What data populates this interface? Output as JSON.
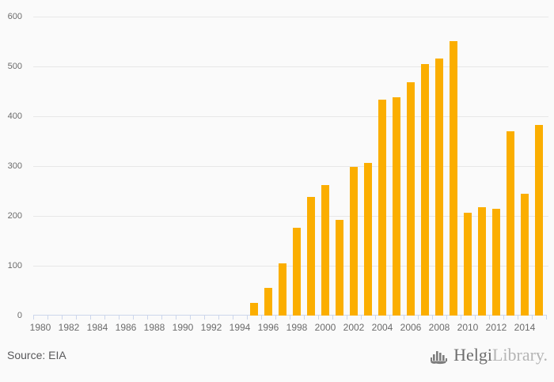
{
  "colors": {
    "background": "#fafafa",
    "bar": "#FBAE00",
    "grid": "#e7e7e7",
    "axis": "#ccd6eb",
    "tick_label": "#6b6b6b",
    "source_text": "#58585a",
    "logo_dark": "#6e6e6e",
    "logo_light": "#b5b5b5"
  },
  "footer": {
    "source": "Source: EIA",
    "logo": {
      "part1": "Helgi",
      "part2": "Library.",
      "icon": "bar-chart-logo-icon"
    }
  },
  "chart_data": {
    "type": "bar",
    "title": "",
    "xlabel": "",
    "ylabel": "",
    "categories": [
      1980,
      1981,
      1982,
      1983,
      1984,
      1985,
      1986,
      1987,
      1988,
      1989,
      1990,
      1991,
      1992,
      1993,
      1994,
      1995,
      1996,
      1997,
      1998,
      1999,
      2000,
      2001,
      2002,
      2003,
      2004,
      2005,
      2006,
      2007,
      2008,
      2009,
      2010,
      2011,
      2012,
      2013,
      2014,
      2015
    ],
    "values": [
      0,
      0,
      0,
      0,
      0,
      0,
      0,
      0,
      0,
      0,
      0,
      0,
      0,
      0,
      0,
      25,
      55,
      104,
      176,
      238,
      262,
      192,
      298,
      306,
      434,
      438,
      468,
      505,
      516,
      551,
      206,
      217,
      215,
      370,
      245,
      382
    ],
    "ylim": [
      0,
      600
    ],
    "ytick_step": 100,
    "ytick_labels": [
      "0",
      "100",
      "200",
      "300",
      "400",
      "500",
      "600"
    ],
    "xtick_labels": [
      "1980",
      "1982",
      "1984",
      "1986",
      "1988",
      "1990",
      "1992",
      "1994",
      "1996",
      "1998",
      "2000",
      "2002",
      "2004",
      "2006",
      "2008",
      "2010",
      "2012",
      "2014"
    ],
    "xtick_label_step": 2,
    "grid": true,
    "legend": "none",
    "bar_color": "#FBAE00"
  }
}
